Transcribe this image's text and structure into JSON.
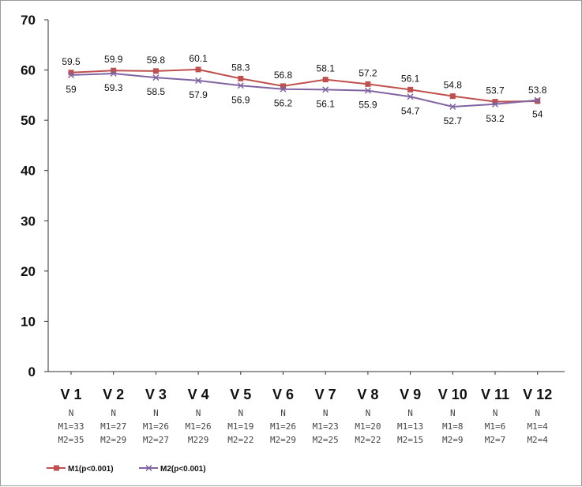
{
  "chart_data": {
    "type": "line",
    "title": "",
    "xlabel": "",
    "ylabel": "",
    "ylim": [
      0,
      70
    ],
    "yticks": [
      0,
      10,
      20,
      30,
      40,
      50,
      60,
      70
    ],
    "grid": false,
    "legend_position": "bottom-left",
    "categories": [
      "V 1",
      "V 2",
      "V 3",
      "V 4",
      "V 5",
      "V 6",
      "V 7",
      "V 8",
      "V 9",
      "V 10",
      "V 11",
      "V 12"
    ],
    "series": [
      {
        "name": "M1(p<0.001)",
        "color": "#c0504d",
        "marker": "square",
        "values": [
          59.5,
          59.9,
          59.8,
          60.1,
          58.3,
          56.8,
          58.1,
          57.2,
          56.1,
          54.8,
          53.7,
          53.8
        ],
        "labels": [
          "59.5",
          "59.9",
          "59.8",
          "60.1",
          "58.3",
          "56.8",
          "58.1",
          "57.2",
          "56.1",
          "54.8",
          "53.7",
          "53.8"
        ]
      },
      {
        "name": "M2(p<0.001)",
        "color": "#8064a2",
        "marker": "x",
        "values": [
          59,
          59.3,
          58.5,
          57.9,
          56.9,
          56.2,
          56.1,
          55.9,
          54.7,
          52.7,
          53.2,
          54
        ],
        "labels": [
          "59",
          "59.3",
          "58.5",
          "57.9",
          "56.9",
          "56.2",
          "56.1",
          "55.9",
          "54.7",
          "52.7",
          "53.2",
          "54"
        ]
      }
    ],
    "n_rows": [
      [
        "N",
        "N",
        "N",
        "N",
        "N",
        "N",
        "N",
        "N",
        "N",
        "N",
        "N",
        "N"
      ],
      [
        "M1=33",
        "M1=27",
        "M1=26",
        "M1=26",
        "M1=19",
        "M1=26",
        "M1=23",
        "M1=20",
        "M1=13",
        "M1=8",
        "M1=6",
        "M1=4"
      ],
      [
        "M2=35",
        "M2=29",
        "M2=27",
        "M229",
        "M2=22",
        "M2=29",
        "M2=25",
        "M2=22",
        "M2=15",
        "M2=9",
        "M2=7",
        "M2=4"
      ]
    ]
  }
}
